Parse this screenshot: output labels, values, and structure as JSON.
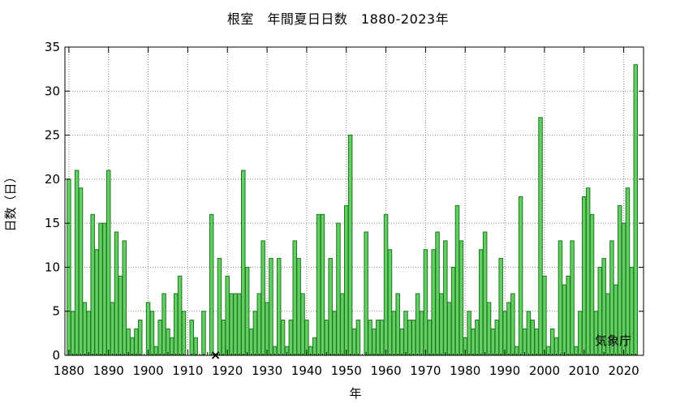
{
  "chart_data": {
    "type": "bar",
    "title": "根室　年間夏日日数　1880-2023年",
    "xlabel": "年",
    "ylabel": "日数（日）",
    "credit": "気象庁",
    "x_start": 1880,
    "x_end": 2023,
    "ylim": [
      0,
      35
    ],
    "yticks": [
      0,
      5,
      10,
      15,
      20,
      25,
      30,
      35
    ],
    "xticks": [
      1880,
      1890,
      1900,
      1910,
      1920,
      1930,
      1940,
      1950,
      1960,
      1970,
      1980,
      1990,
      2000,
      2010,
      2020
    ],
    "grid": true,
    "bar_color": "#66cc66",
    "bar_edge_color": "#1a7a1a",
    "missing_marker": "×",
    "missing_years": [
      1917
    ],
    "values": [
      20,
      5,
      21,
      19,
      6,
      5,
      16,
      12,
      15,
      15,
      21,
      6,
      14,
      9,
      13,
      3,
      2,
      3,
      4,
      0,
      6,
      5,
      1,
      4,
      7,
      3,
      2,
      7,
      9,
      5,
      0,
      4,
      2,
      0,
      5,
      0,
      16,
      null,
      11,
      4,
      9,
      7,
      7,
      7,
      21,
      10,
      3,
      5,
      7,
      13,
      6,
      11,
      1,
      11,
      4,
      1,
      4,
      13,
      11,
      7,
      4,
      1,
      2,
      16,
      16,
      4,
      11,
      5,
      15,
      7,
      17,
      25,
      3,
      4,
      0,
      14,
      4,
      3,
      4,
      4,
      16,
      12,
      5,
      7,
      3,
      5,
      4,
      4,
      7,
      5,
      12,
      4,
      12,
      14,
      7,
      13,
      6,
      10,
      17,
      13,
      2,
      5,
      3,
      4,
      12,
      14,
      6,
      3,
      4,
      11,
      5,
      6,
      7,
      1,
      18,
      3,
      5,
      4,
      3,
      27,
      9,
      1,
      3,
      2,
      13,
      8,
      9,
      13,
      1,
      5,
      18,
      19,
      16,
      5,
      10,
      11,
      7,
      13,
      8,
      17,
      15,
      19,
      10,
      33
    ]
  }
}
